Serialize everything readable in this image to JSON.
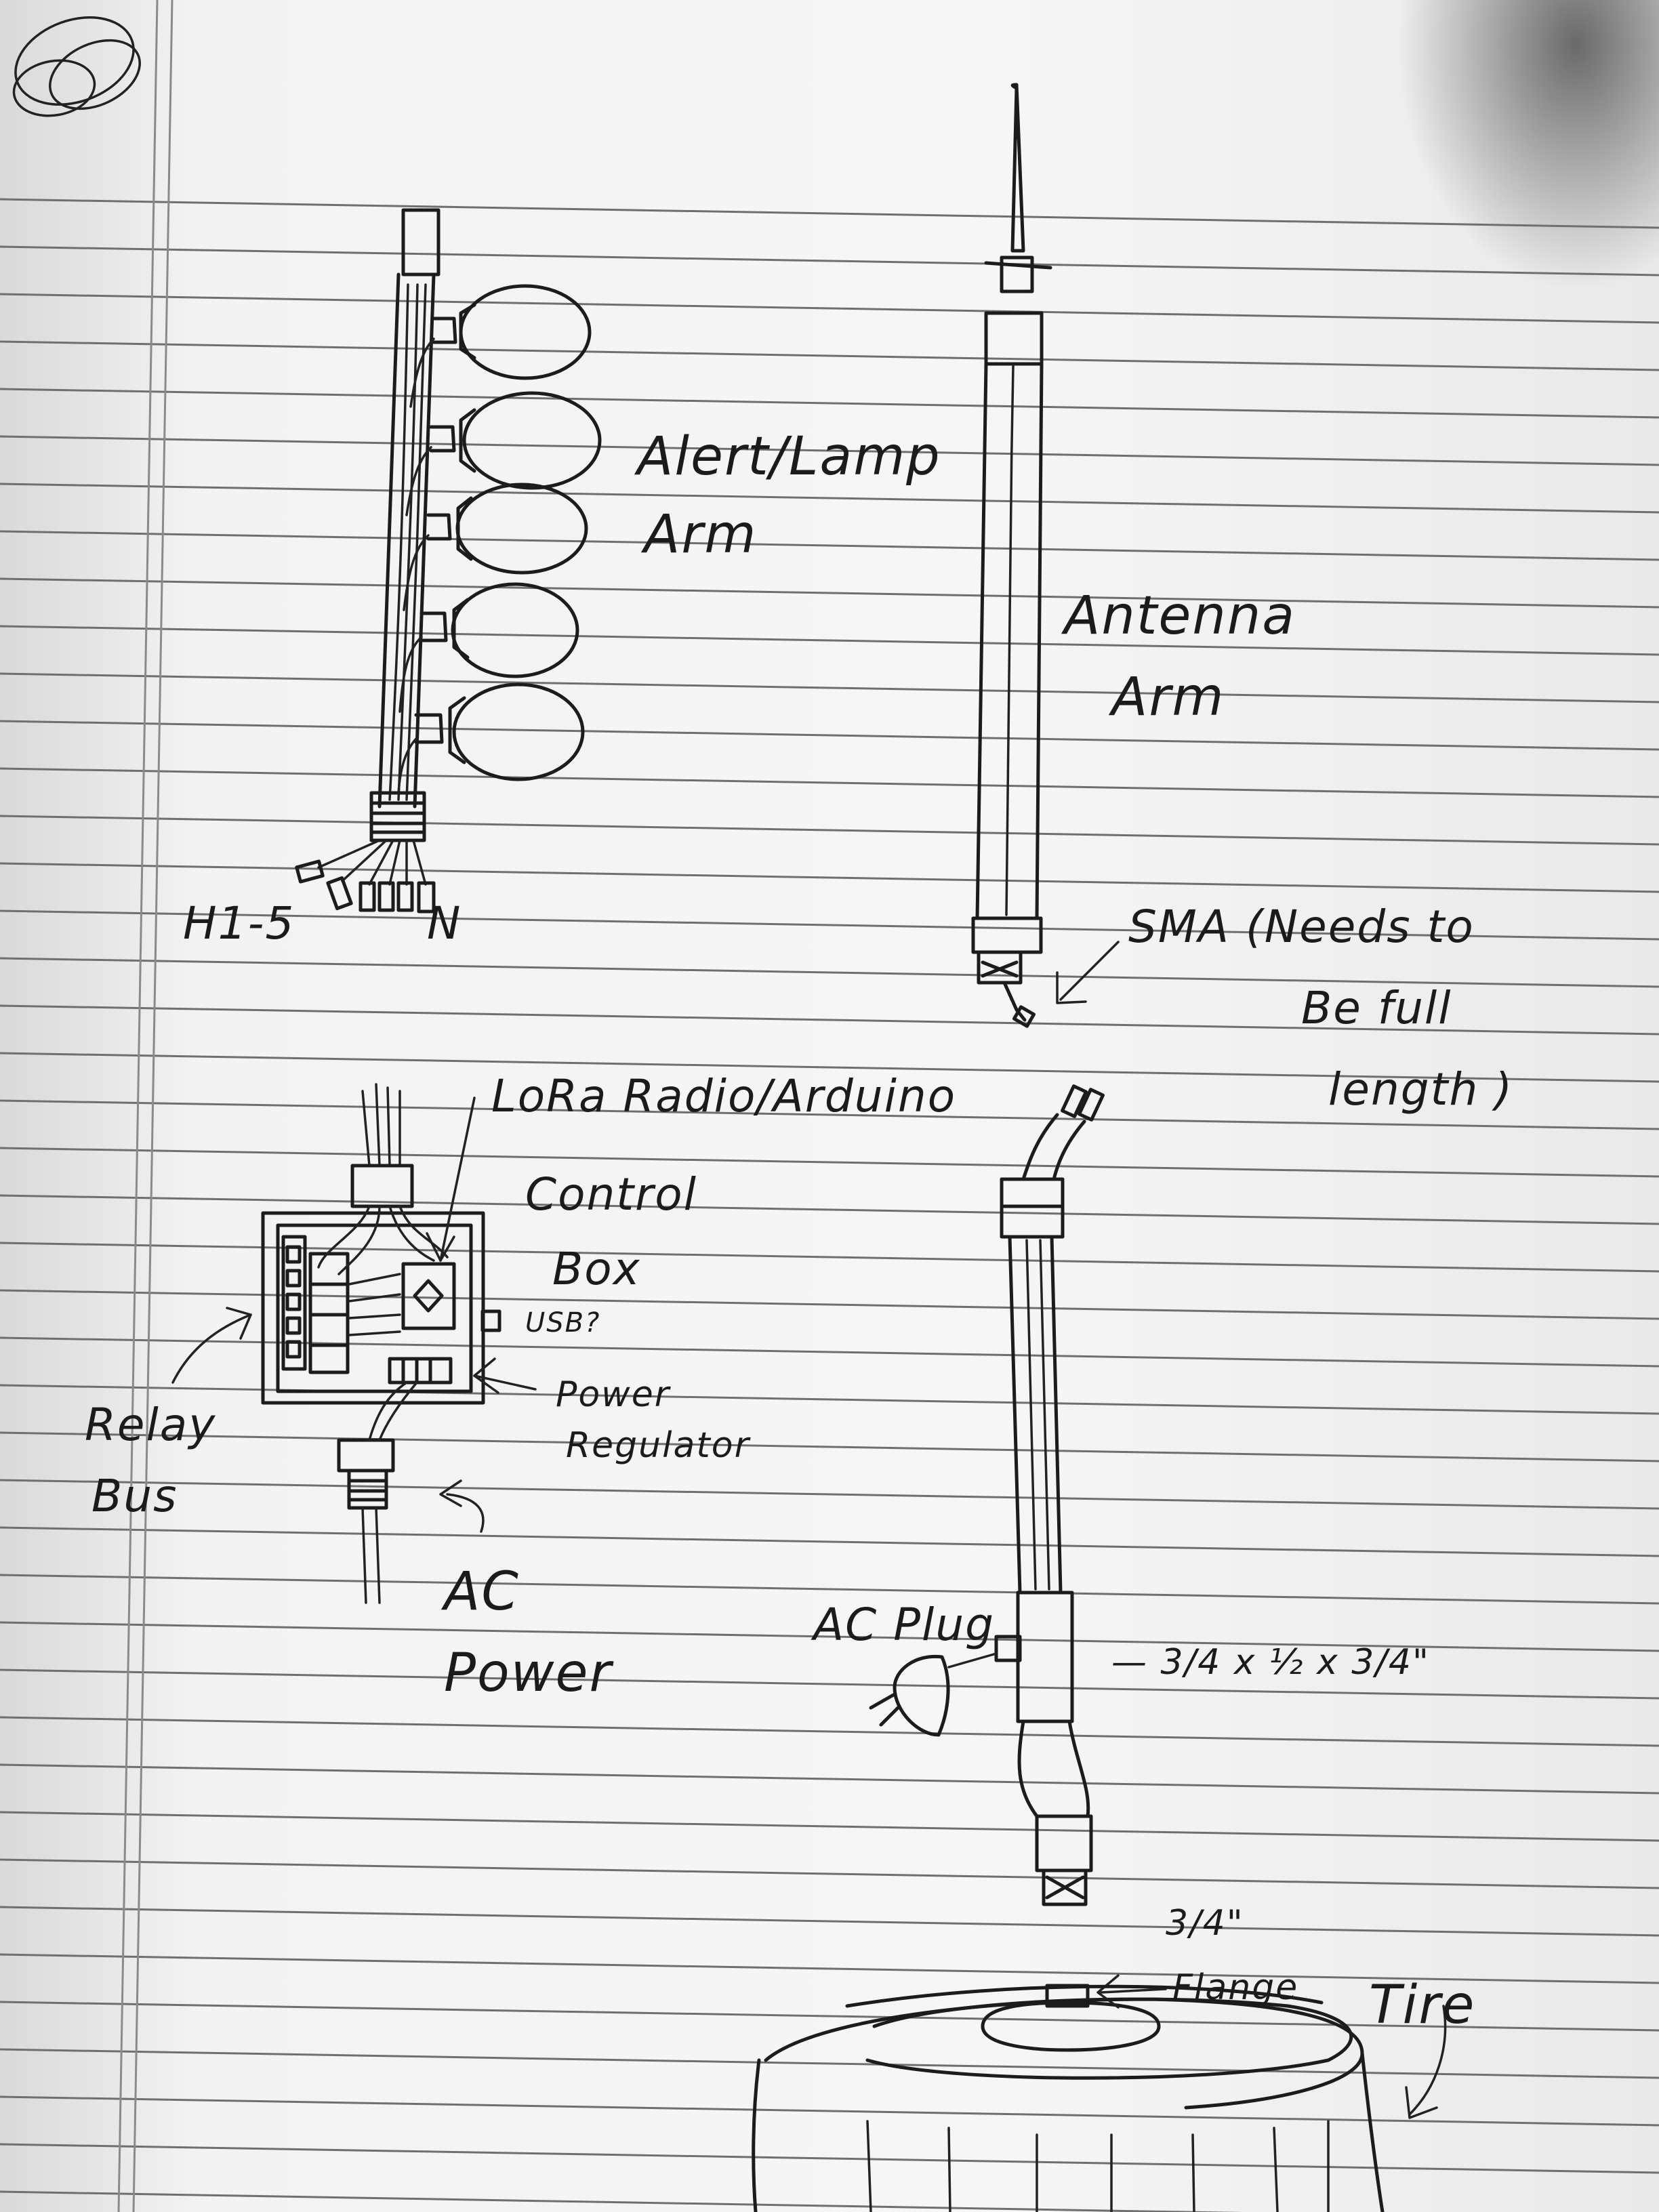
{
  "labels": {
    "alert_lamp_arm_line1": "Alert/Lamp",
    "alert_lamp_arm_line2": "Arm",
    "h1_5": "H1-5",
    "n": "N",
    "antenna_arm_line1": "Antenna",
    "antenna_arm_line2": "Arm",
    "sma_line1": "SMA (Needs to",
    "sma_line2": "Be full",
    "sma_line3": "length )",
    "lora": "LoRa Radio/Arduino",
    "control_box_line1": "Control",
    "control_box_line2": "Box",
    "usb": "USB?",
    "power_regulator_line1": "Power",
    "power_regulator_line2": "Regulator",
    "relay_bus_line1": "Relay",
    "relay_bus_line2": "Bus",
    "ac_power_line1": "AC",
    "ac_power_line2": "Power",
    "ac_plug": "AC Plug",
    "tee_size": "— 3/4 x ½ x 3/4\"",
    "flange_size": "3/4\"",
    "flange": "Flange",
    "tire": "Tire"
  },
  "colors": {
    "ink": "#1c1c1c",
    "paper": "#f4f4f4",
    "rules": "#6f6f6f"
  }
}
